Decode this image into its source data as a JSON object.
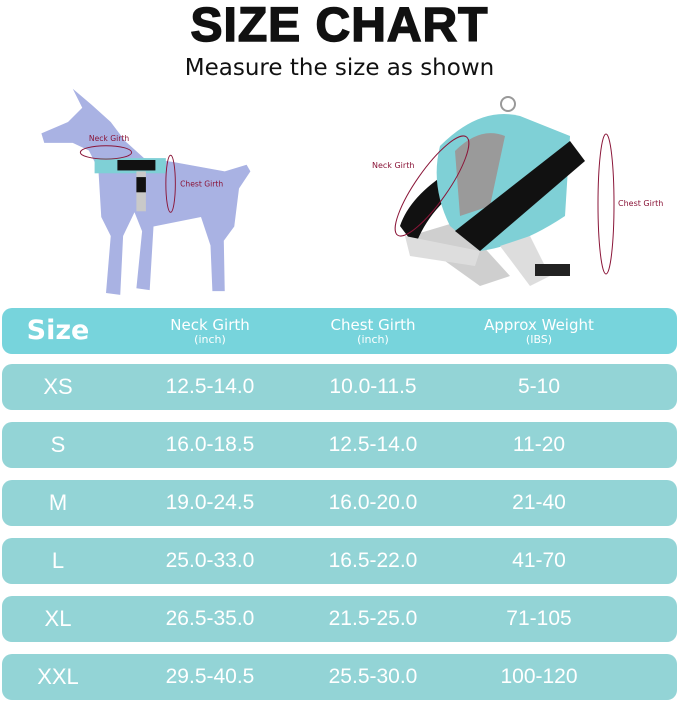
{
  "title": "SIZE CHART",
  "subtitle": "Measure the size as shown",
  "illustrations": {
    "dog": {
      "neck_label": "Neck Girth",
      "chest_label": "Chest Girth"
    },
    "harness": {
      "neck_label": "Neck Girth",
      "chest_label": "Chest Girth"
    }
  },
  "colors": {
    "header": "#77d4dc",
    "row": "#93d4d6",
    "measure_line": "#8a1538",
    "dog": "#a9b2e3"
  },
  "table": {
    "headers": [
      {
        "main": "Size",
        "sub": ""
      },
      {
        "main": "Neck Girth",
        "sub": "(inch)"
      },
      {
        "main": "Chest Girth",
        "sub": "(inch)"
      },
      {
        "main": "Approx Weight",
        "sub": "(IBS)"
      }
    ],
    "rows": [
      [
        "XS",
        "12.5-14.0",
        "10.0-11.5",
        "5-10"
      ],
      [
        "S",
        "16.0-18.5",
        "12.5-14.0",
        "11-20"
      ],
      [
        "M",
        "19.0-24.5",
        "16.0-20.0",
        "21-40"
      ],
      [
        "L",
        "25.0-33.0",
        "16.5-22.0",
        "41-70"
      ],
      [
        "XL",
        "26.5-35.0",
        "21.5-25.0",
        "71-105"
      ],
      [
        "XXL",
        "29.5-40.5",
        "25.5-30.0",
        "100-120"
      ]
    ]
  }
}
